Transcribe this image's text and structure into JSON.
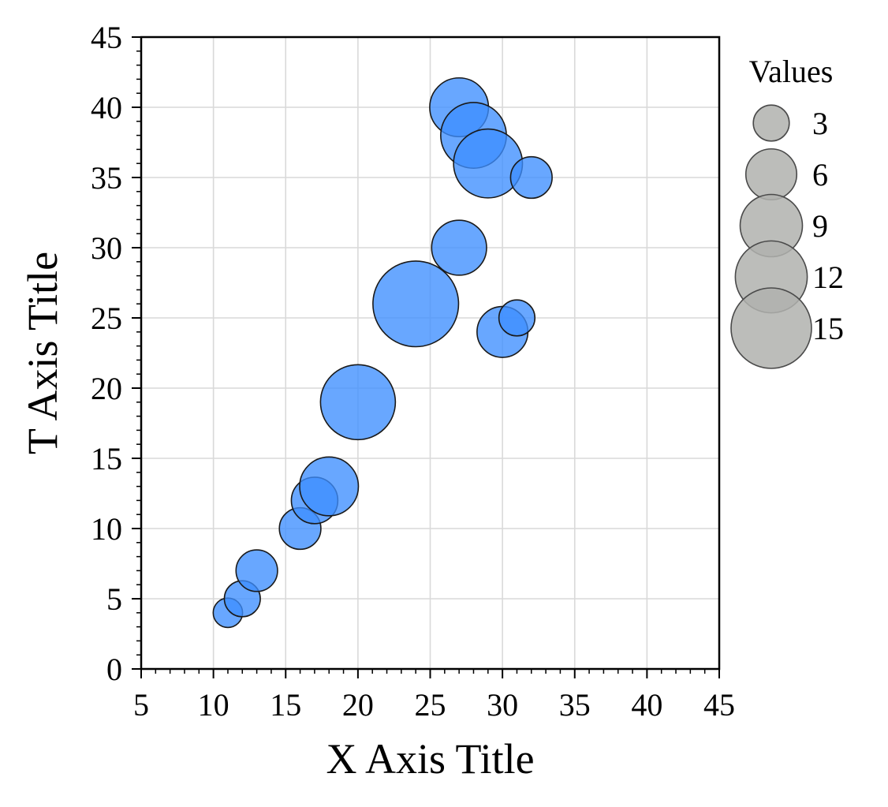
{
  "chart_data": {
    "type": "scatter",
    "xlabel": "X Axis Title",
    "ylabel": "T Axis Title",
    "xlim": [
      5,
      45
    ],
    "ylim": [
      0,
      45
    ],
    "xticks": [
      5,
      10,
      15,
      20,
      25,
      30,
      35,
      40,
      45
    ],
    "yticks": [
      0,
      5,
      10,
      15,
      20,
      25,
      30,
      35,
      40,
      45
    ],
    "grid": true,
    "point_color": "#3d8eff",
    "point_edge_color": "#1a1a1a",
    "points": [
      {
        "x": 11,
        "y": 4,
        "size": 2
      },
      {
        "x": 12,
        "y": 5,
        "size": 3
      },
      {
        "x": 13,
        "y": 7,
        "size": 4
      },
      {
        "x": 16,
        "y": 10,
        "size": 4
      },
      {
        "x": 17,
        "y": 12,
        "size": 5
      },
      {
        "x": 18,
        "y": 13,
        "size": 8
      },
      {
        "x": 20,
        "y": 19,
        "size": 13
      },
      {
        "x": 24,
        "y": 26,
        "size": 17
      },
      {
        "x": 27,
        "y": 30,
        "size": 7
      },
      {
        "x": 30,
        "y": 24,
        "size": 6
      },
      {
        "x": 31,
        "y": 25,
        "size": 3
      },
      {
        "x": 27,
        "y": 40,
        "size": 8
      },
      {
        "x": 28,
        "y": 38,
        "size": 10
      },
      {
        "x": 29,
        "y": 36,
        "size": 11
      },
      {
        "x": 32,
        "y": 35,
        "size": 4
      }
    ],
    "legend": {
      "title": "Values",
      "placement": "right-outside",
      "marker_color": "#b0b1ae",
      "entries": [
        {
          "label": "3",
          "size": 3
        },
        {
          "label": "6",
          "size": 6
        },
        {
          "label": "9",
          "size": 9
        },
        {
          "label": "12",
          "size": 12
        },
        {
          "label": "15",
          "size": 15
        }
      ]
    }
  }
}
